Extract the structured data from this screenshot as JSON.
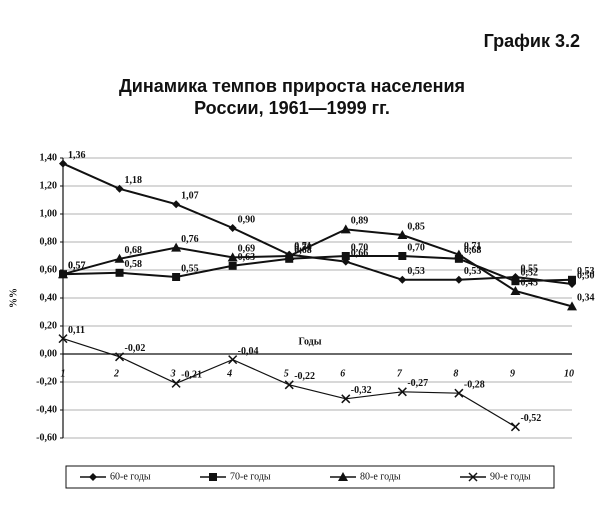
{
  "header": "График 3.2",
  "chart_data": {
    "type": "line",
    "title": [
      "Динамика темпов прироста населения",
      "России, 1961—1999 гг."
    ],
    "y_label": "%%",
    "x_label": "Годы",
    "categories": [
      "1",
      "2",
      "3",
      "4",
      "5",
      "6",
      "7",
      "8",
      "9",
      "10"
    ],
    "ylim": [
      -0.6,
      1.4
    ],
    "yticks": [
      {
        "value": -0.6,
        "label": "-0,60"
      },
      {
        "value": -0.4,
        "label": "-0,40"
      },
      {
        "value": -0.2,
        "label": "-0,20"
      },
      {
        "value": 0,
        "label": "0,00"
      },
      {
        "value": 0.2,
        "label": "0,20"
      },
      {
        "value": 0.4,
        "label": "0,40"
      },
      {
        "value": 0.6,
        "label": "0,60"
      },
      {
        "value": 0.8,
        "label": "0,80"
      },
      {
        "value": 1.0,
        "label": "1,00"
      },
      {
        "value": 1.2,
        "label": "1,20"
      },
      {
        "value": 1.4,
        "label": "1,40"
      }
    ],
    "grid": true,
    "series": [
      {
        "name": "60-е годы",
        "color": "#111",
        "marker": "diamond",
        "values": [
          1.36,
          1.18,
          1.07,
          0.9,
          0.71,
          0.66,
          0.53,
          0.53,
          0.55,
          0.5
        ],
        "value_labels": [
          "1,36",
          "1,18",
          "1,07",
          "0,90",
          "0,71",
          "0,66",
          "0,53",
          "0,53",
          "0,55",
          "0,50"
        ]
      },
      {
        "name": "70-е годы",
        "color": "#111",
        "marker": "square",
        "values": [
          0.57,
          0.58,
          0.55,
          0.63,
          0.68,
          0.7,
          0.7,
          0.68,
          0.52,
          0.53
        ],
        "value_labels": [
          "0,57",
          "0,58",
          "0,55",
          "0,63",
          "0,68",
          "0,70",
          "0,70",
          "0,68",
          "0,52",
          "0,53"
        ]
      },
      {
        "name": "80-е годы",
        "color": "#111",
        "marker": "triangle",
        "values": [
          0.57,
          0.68,
          0.76,
          0.69,
          0.7,
          0.89,
          0.85,
          0.71,
          0.45,
          0.34
        ],
        "value_labels": [
          "0,57",
          "0,68",
          "0,76",
          "0,69",
          "0,70",
          "0,89",
          "0,85",
          "0,71",
          "0,45",
          "0,34"
        ]
      },
      {
        "name": "90-е годы",
        "color": "#111",
        "marker": "cross",
        "values": [
          0.11,
          -0.02,
          -0.21,
          -0.04,
          -0.22,
          -0.32,
          -0.27,
          -0.28,
          -0.52,
          null
        ],
        "value_labels": [
          "0,11",
          "-0,02",
          "-0,21",
          "-0,04",
          "-0,22",
          "-0,32",
          "-0,27",
          "-0,28",
          "-0,52",
          null
        ]
      }
    ],
    "legend": "bottom"
  }
}
